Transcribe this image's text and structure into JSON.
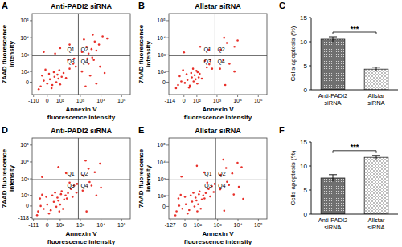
{
  "chart_data": [
    {
      "type": "scatter",
      "panel": "A",
      "title": "Anti-PADI2 siRNA",
      "x_label": "Annexin V\nfluorescence intensity",
      "y_label": "7AAD fluorescence\nintensity",
      "xlim": [
        -130,
        262144
      ],
      "ylim": [
        -130,
        262144
      ],
      "xticks": [
        -110,
        0,
        {
          "value": 100,
          "label": "10²"
        },
        {
          "value": 1000,
          "label": "10³"
        },
        {
          "value": 10000,
          "label": "10⁴"
        },
        {
          "value": 100000,
          "label": "10⁵"
        }
      ],
      "yticks": [
        0,
        {
          "value": 100,
          "label": "10²"
        },
        {
          "value": 1000,
          "label": "10³"
        },
        {
          "value": 10000,
          "label": "10⁴"
        },
        {
          "value": 100000,
          "label": "10⁵"
        }
      ],
      "gates": {
        "x": 800,
        "y": 900
      },
      "quadrants": [
        "Q1",
        "Q2",
        "Q3",
        "Q4"
      ],
      "color": "#e8302a",
      "x": [
        -40,
        -20,
        0,
        15,
        30,
        45,
        60,
        80,
        -30,
        10,
        40,
        70,
        100,
        120,
        -55,
        25,
        150,
        90,
        -10,
        200,
        300,
        450,
        250,
        600,
        500,
        -20,
        100,
        300,
        50,
        1200,
        2000,
        3500,
        5000,
        8000,
        1500,
        12000,
        2500,
        6000,
        20000,
        4000,
        1200,
        1800,
        2500,
        3000,
        4500,
        6000,
        9000,
        15000,
        2200,
        3800
      ],
      "values": [
        -30,
        10,
        -10,
        20,
        -20,
        40,
        0,
        25,
        50,
        70,
        90,
        60,
        -15,
        40,
        -55,
        -45,
        80,
        120,
        130,
        30,
        150,
        300,
        500,
        200,
        600,
        1500,
        2500,
        4000,
        1200,
        1500,
        3000,
        2200,
        6000,
        4000,
        8000,
        12000,
        1200,
        1800,
        9000,
        15000,
        100,
        -30,
        300,
        50,
        500,
        -10,
        200,
        80,
        600,
        700
      ]
    },
    {
      "type": "scatter",
      "panel": "B",
      "title": "Allstar siRNA",
      "x_label": "Annexin V\nfluorescence intensity",
      "y_label": "7AAD fluorescence\nintensity",
      "xlim": [
        -130,
        262144
      ],
      "ylim": [
        -130,
        262144
      ],
      "xticks": [
        -114,
        0,
        {
          "value": 100,
          "label": "10²"
        },
        {
          "value": 1000,
          "label": "10³"
        },
        {
          "value": 10000,
          "label": "10⁴"
        },
        {
          "value": 100000,
          "label": "10⁵"
        }
      ],
      "yticks": [
        0,
        {
          "value": 100,
          "label": "10²"
        },
        {
          "value": 1000,
          "label": "10³"
        },
        {
          "value": 10000,
          "label": "10⁴"
        },
        {
          "value": 100000,
          "label": "10⁵"
        }
      ],
      "gates": {
        "x": 800,
        "y": 900
      },
      "quadrants": [
        "Q1",
        "Q2",
        "Q3",
        "Q4"
      ],
      "color": "#e8302a",
      "x": [
        -35,
        -15,
        5,
        20,
        35,
        50,
        65,
        85,
        -25,
        15,
        45,
        75,
        105,
        125,
        -50,
        30,
        140,
        95,
        -5,
        180,
        60,
        110,
        320,
        420,
        260,
        580,
        480,
        0,
        150,
        400,
        1500,
        3000,
        7000,
        2200,
        10000,
        1400,
        2500,
        4000,
        7000,
        2000
      ],
      "values": [
        -20,
        5,
        -5,
        15,
        -25,
        35,
        5,
        20,
        45,
        65,
        80,
        55,
        -10,
        35,
        -45,
        -40,
        70,
        110,
        120,
        25,
        150,
        90,
        180,
        280,
        450,
        150,
        520,
        1400,
        3000,
        2000,
        2000,
        5000,
        3000,
        10000,
        7000,
        150,
        -20,
        300,
        100,
        500
      ]
    },
    {
      "type": "bar",
      "panel": "C",
      "y_label": "Cells apoptosis (%)",
      "categories": [
        "Anti-PADI2\nsiRNA",
        "Allstar\nsiRNA"
      ],
      "values": [
        10.5,
        4.3
      ],
      "errors": [
        0.5,
        0.4
      ],
      "colors": [
        "#6f6f6f",
        "#bdbdbd"
      ],
      "ylim": [
        0,
        15
      ],
      "yticks": [
        0,
        5,
        10,
        15
      ],
      "annotation": "***"
    },
    {
      "type": "scatter",
      "panel": "D",
      "title": "Anti-PADI2 siRNA",
      "x_label": "Annexin V\nfluorescence intensity",
      "y_label": "7AAD fluorescence\nintensity",
      "xlim": [
        -130,
        262144
      ],
      "ylim": [
        -140,
        262144
      ],
      "xticks": [
        -111,
        0,
        {
          "value": 100,
          "label": "10²"
        },
        {
          "value": 1000,
          "label": "10³"
        },
        {
          "value": 10000,
          "label": "10⁴"
        },
        {
          "value": 100000,
          "label": "10⁵"
        }
      ],
      "yticks": [
        -118,
        0,
        {
          "value": 100,
          "label": "10²"
        },
        {
          "value": 1000,
          "label": "10³"
        },
        {
          "value": 10000,
          "label": "10⁴"
        },
        {
          "value": 100000,
          "label": "10⁵"
        }
      ],
      "gates": {
        "x": 800,
        "y": 900
      },
      "quadrants": [
        "Q1",
        "Q2",
        "Q3",
        "Q4"
      ],
      "color": "#e8302a",
      "x": [
        -60,
        -40,
        -20,
        0,
        20,
        40,
        60,
        80,
        100,
        -45,
        -5,
        30,
        70,
        110,
        140,
        160,
        190,
        -70,
        10,
        50,
        120,
        220,
        90,
        -30,
        250,
        350,
        500,
        300,
        650,
        700,
        420,
        -30,
        200,
        80,
        1300,
        2500,
        5000,
        9000,
        1800,
        1300,
        2000,
        3500,
        6000,
        10000,
        2800
      ],
      "values": [
        -40,
        0,
        -20,
        10,
        -30,
        30,
        -5,
        40,
        10,
        60,
        80,
        100,
        70,
        120,
        -20,
        50,
        100,
        -80,
        -60,
        150,
        180,
        60,
        -40,
        110,
        140,
        250,
        400,
        600,
        150,
        500,
        80,
        1300,
        2200,
        5000,
        1600,
        4000,
        2500,
        8000,
        12000,
        200,
        -40,
        400,
        100,
        300,
        650
      ]
    },
    {
      "type": "scatter",
      "panel": "E",
      "title": "Allstar siRNA",
      "x_label": "Annexin V\nfluorescence intensity",
      "y_label": "7AAD fluorescence\nintensity",
      "xlim": [
        -150,
        262144
      ],
      "ylim": [
        -130,
        262144
      ],
      "xticks": [
        -127,
        0,
        {
          "value": 100,
          "label": "10²"
        },
        {
          "value": 1000,
          "label": "10³"
        },
        {
          "value": 10000,
          "label": "10⁴"
        },
        {
          "value": 100000,
          "label": "10⁵"
        }
      ],
      "yticks": [
        0,
        {
          "value": 100,
          "label": "10²"
        },
        {
          "value": 1000,
          "label": "10³"
        },
        {
          "value": 10000,
          "label": "10⁴"
        },
        {
          "value": 100000,
          "label": "10⁵"
        }
      ],
      "gates": {
        "x": 800,
        "y": 900
      },
      "quadrants": [
        "Q1",
        "Q2",
        "Q3",
        "Q4"
      ],
      "color": "#e8302a",
      "x": [
        -55,
        -35,
        -15,
        5,
        25,
        45,
        65,
        85,
        105,
        -40,
        0,
        35,
        75,
        115,
        145,
        165,
        195,
        -65,
        15,
        55,
        125,
        225,
        95,
        -25,
        260,
        360,
        520,
        310,
        640,
        720,
        430,
        -20,
        220,
        90,
        1400,
        2600,
        5200,
        9500,
        1900,
        15000,
        1350,
        2100,
        3600,
        6200,
        11000,
        2900,
        18000
      ],
      "values": [
        -35,
        5,
        -15,
        15,
        -25,
        35,
        0,
        45,
        15,
        65,
        85,
        105,
        75,
        125,
        -15,
        55,
        105,
        -75,
        -55,
        155,
        185,
        65,
        -35,
        115,
        150,
        260,
        380,
        620,
        170,
        520,
        90,
        1400,
        2500,
        6000,
        1800,
        4500,
        2200,
        9000,
        14000,
        5000,
        250,
        -30,
        450,
        120,
        350,
        700,
        60
      ]
    },
    {
      "type": "bar",
      "panel": "F",
      "y_label": "Cells apoptosis (%)",
      "categories": [
        "Anti-PADI2\nsiRNA",
        "Allstar\nsiRNA"
      ],
      "values": [
        7.5,
        11.8
      ],
      "errors": [
        0.7,
        0.4
      ],
      "colors": [
        "#6f6f6f",
        "#bdbdbd"
      ],
      "ylim": [
        0,
        15
      ],
      "yticks": [
        0,
        5,
        10,
        15
      ],
      "annotation": "***"
    }
  ]
}
